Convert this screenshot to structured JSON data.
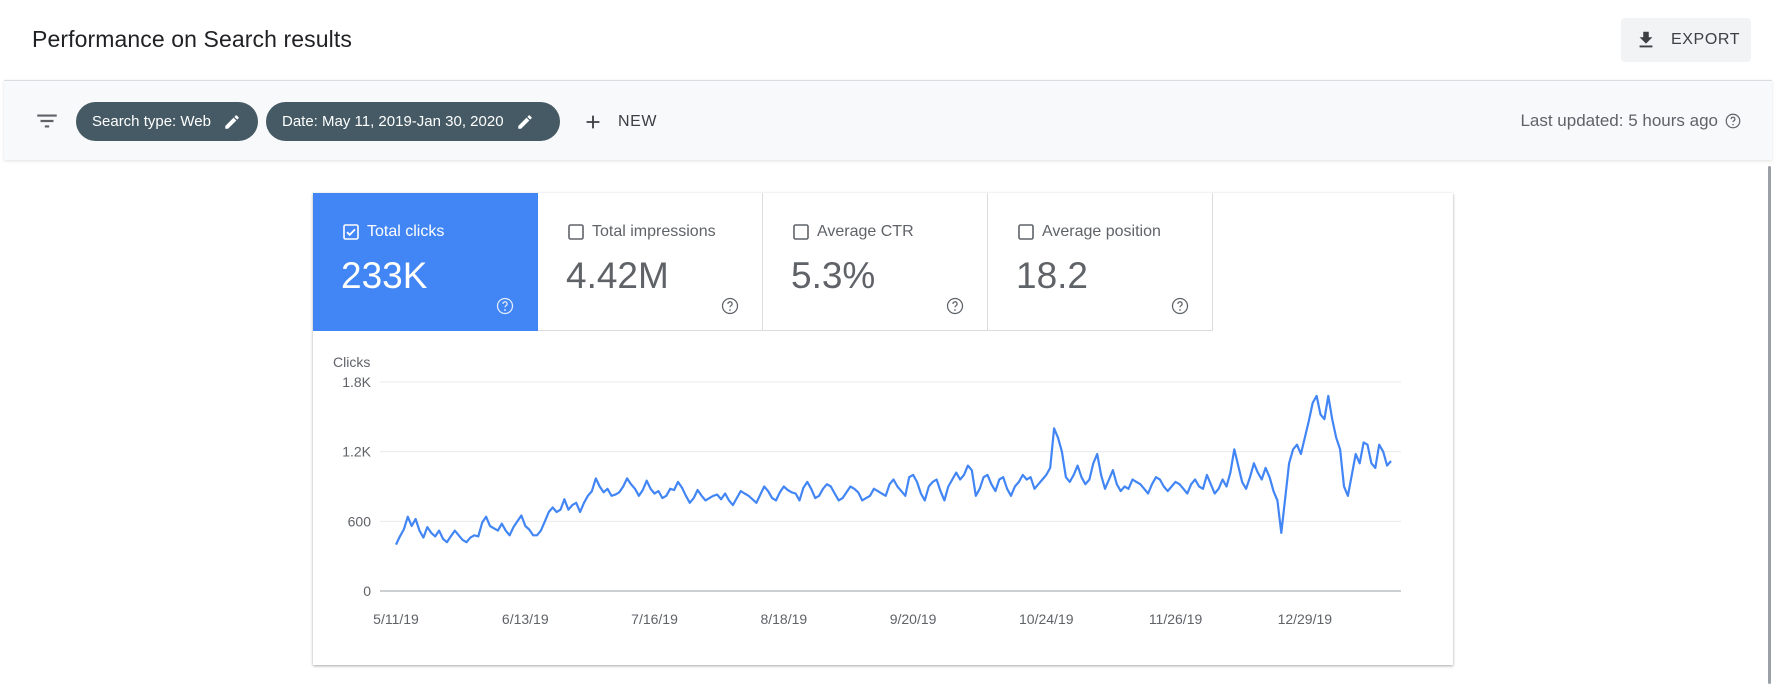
{
  "header": {
    "title": "Performance on Search results",
    "export_label": "EXPORT"
  },
  "filters": {
    "chips": [
      {
        "label": "Search type: Web"
      },
      {
        "label": "Date: May 11, 2019-Jan 30, 2020"
      }
    ],
    "new_label": "NEW",
    "last_updated": "Last updated: 5 hours ago"
  },
  "metrics": [
    {
      "label": "Total clicks",
      "value": "233K",
      "checked": true
    },
    {
      "label": "Total impressions",
      "value": "4.42M",
      "checked": false
    },
    {
      "label": "Average CTR",
      "value": "5.3%",
      "checked": false
    },
    {
      "label": "Average position",
      "value": "18.2",
      "checked": false
    }
  ],
  "colors": {
    "accent": "#4285f4",
    "chip": "#455a64",
    "line": "#4285f4"
  },
  "chart_data": {
    "type": "line",
    "ylabel": "Clicks",
    "ylim": [
      0,
      1800
    ],
    "yticks": [
      0,
      600,
      1200,
      1800
    ],
    "ytick_labels": [
      "0",
      "600",
      "1.2K",
      "1.8K"
    ],
    "xtick_labels": [
      "5/11/19",
      "6/13/19",
      "7/16/19",
      "8/18/19",
      "9/20/19",
      "10/24/19",
      "11/26/19",
      "12/29/19"
    ],
    "xtick_index": [
      0,
      33,
      66,
      99,
      132,
      166,
      199,
      232
    ],
    "series": [
      {
        "name": "Clicks",
        "values": [
          400,
          470,
          530,
          640,
          560,
          620,
          520,
          460,
          550,
          500,
          470,
          520,
          450,
          420,
          470,
          520,
          480,
          440,
          420,
          460,
          480,
          470,
          590,
          640,
          560,
          540,
          520,
          580,
          520,
          480,
          550,
          600,
          650,
          560,
          530,
          480,
          480,
          520,
          600,
          680,
          720,
          680,
          700,
          790,
          700,
          740,
          760,
          680,
          760,
          820,
          860,
          970,
          900,
          850,
          880,
          820,
          830,
          850,
          900,
          970,
          920,
          880,
          820,
          870,
          950,
          880,
          840,
          860,
          800,
          820,
          880,
          870,
          940,
          890,
          820,
          760,
          800,
          870,
          820,
          780,
          800,
          820,
          830,
          790,
          840,
          780,
          740,
          800,
          860,
          840,
          820,
          790,
          760,
          830,
          900,
          860,
          800,
          780,
          850,
          900,
          870,
          850,
          840,
          780,
          890,
          940,
          880,
          800,
          820,
          880,
          920,
          900,
          840,
          780,
          800,
          850,
          900,
          880,
          850,
          780,
          800,
          820,
          880,
          860,
          840,
          820,
          920,
          960,
          900,
          860,
          820,
          980,
          1000,
          940,
          840,
          780,
          900,
          940,
          960,
          860,
          780,
          900,
          960,
          1020,
          960,
          1000,
          1080,
          1040,
          820,
          880,
          980,
          1000,
          920,
          860,
          960,
          980,
          880,
          820,
          900,
          940,
          1000,
          960,
          980,
          880,
          920,
          960,
          1000,
          1060,
          1400,
          1320,
          1200,
          980,
          940,
          1000,
          1080,
          980,
          920,
          960,
          1100,
          1180,
          1000,
          880,
          960,
          1040,
          920,
          860,
          900,
          880,
          960,
          940,
          920,
          880,
          840,
          920,
          980,
          960,
          900,
          860,
          900,
          940,
          920,
          880,
          840,
          920,
          960,
          900,
          880,
          1000,
          920,
          840,
          880,
          960,
          900,
          1020,
          1220,
          1080,
          940,
          880,
          980,
          1100,
          1020,
          960,
          1060,
          980,
          860,
          780,
          500,
          800,
          1100,
          1220,
          1260,
          1180,
          1320,
          1460,
          1620,
          1680,
          1520,
          1480,
          1680,
          1480,
          1320,
          1220,
          900,
          820,
          1000,
          1180,
          1100,
          1280,
          1260,
          1100,
          1060,
          1260,
          1200,
          1080,
          1120
        ]
      }
    ]
  }
}
